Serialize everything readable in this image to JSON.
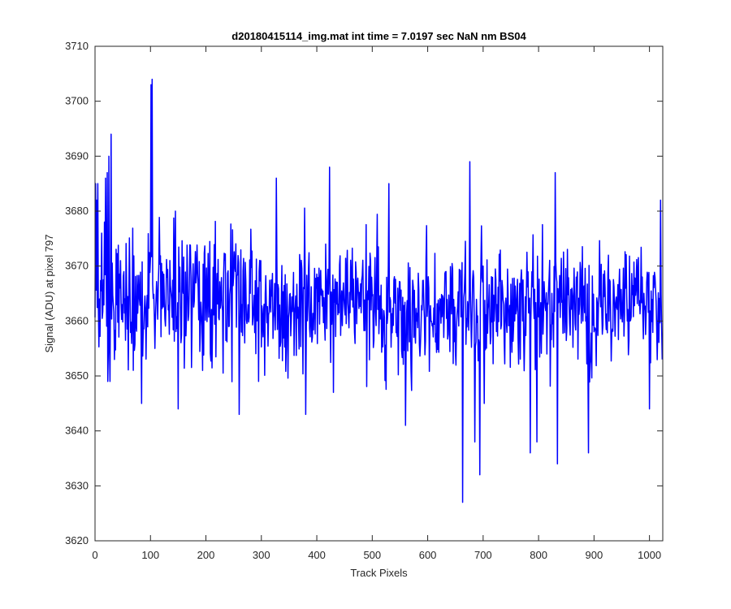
{
  "chart_data": {
    "type": "line",
    "title": "d20180415114_img.mat int time = 7.0197 sec  NaN nm BS04",
    "xlabel": "Track Pixels",
    "ylabel": "Signal (ADU) at pixel 797",
    "xlim": [
      0,
      1024
    ],
    "ylim": [
      3620,
      3710
    ],
    "xticks": [
      0,
      100,
      200,
      300,
      400,
      500,
      600,
      700,
      800,
      900,
      1000
    ],
    "yticks": [
      3620,
      3630,
      3640,
      3650,
      3660,
      3670,
      3680,
      3690,
      3700,
      3710
    ],
    "grid": false,
    "series": [
      {
        "color": "#0000ff",
        "points": 1024,
        "baseline": 3664,
        "landmarks": [
          {
            "x": 1,
            "y": 3685
          },
          {
            "x": 3,
            "y": 3682
          },
          {
            "x": 5,
            "y": 3685
          },
          {
            "x": 8,
            "y": 3664
          },
          {
            "x": 12,
            "y": 3676
          },
          {
            "x": 17,
            "y": 3678
          },
          {
            "x": 19,
            "y": 3686
          },
          {
            "x": 22,
            "y": 3687
          },
          {
            "x": 23,
            "y": 3649
          },
          {
            "x": 25,
            "y": 3690
          },
          {
            "x": 27,
            "y": 3649
          },
          {
            "x": 29,
            "y": 3694
          },
          {
            "x": 35,
            "y": 3653
          },
          {
            "x": 84,
            "y": 3645
          },
          {
            "x": 101,
            "y": 3703
          },
          {
            "x": 103,
            "y": 3704
          },
          {
            "x": 108,
            "y": 3655
          },
          {
            "x": 145,
            "y": 3680
          },
          {
            "x": 150,
            "y": 3644
          },
          {
            "x": 194,
            "y": 3651
          },
          {
            "x": 260,
            "y": 3643
          },
          {
            "x": 295,
            "y": 3649
          },
          {
            "x": 327,
            "y": 3686
          },
          {
            "x": 380,
            "y": 3643
          },
          {
            "x": 423,
            "y": 3688
          },
          {
            "x": 430,
            "y": 3647
          },
          {
            "x": 530,
            "y": 3685
          },
          {
            "x": 560,
            "y": 3641
          },
          {
            "x": 580,
            "y": 3660
          },
          {
            "x": 630,
            "y": 3662
          },
          {
            "x": 663,
            "y": 3627
          },
          {
            "x": 676,
            "y": 3689
          },
          {
            "x": 685,
            "y": 3638
          },
          {
            "x": 694,
            "y": 3632
          },
          {
            "x": 702,
            "y": 3645
          },
          {
            "x": 720,
            "y": 3660
          },
          {
            "x": 760,
            "y": 3662
          },
          {
            "x": 785,
            "y": 3636
          },
          {
            "x": 797,
            "y": 3638
          },
          {
            "x": 830,
            "y": 3687
          },
          {
            "x": 834,
            "y": 3634
          },
          {
            "x": 880,
            "y": 3660
          },
          {
            "x": 890,
            "y": 3636
          },
          {
            "x": 960,
            "y": 3660
          },
          {
            "x": 1000,
            "y": 3644
          },
          {
            "x": 1010,
            "y": 3668
          },
          {
            "x": 1020,
            "y": 3682
          },
          {
            "x": 1023,
            "y": 3653
          }
        ]
      }
    ]
  }
}
